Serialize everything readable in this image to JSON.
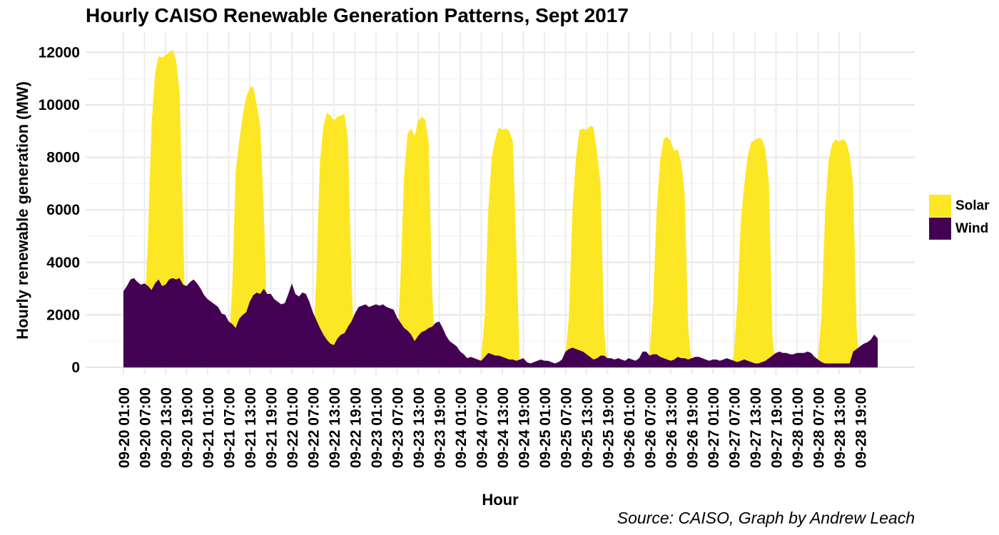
{
  "chart_data": {
    "type": "area",
    "stacked": false,
    "title": "Hourly CAISO Renewable Generation Patterns, Sept 2017",
    "xlabel": "Hour",
    "ylabel": "Hourly renewable generation (MW)",
    "caption": "Source: CAISO, Graph by Andrew Leach",
    "x_start": "2017-09-20 01:00",
    "x_end": "2017-09-28 24:00",
    "ylim": [
      0,
      12500
    ],
    "yticks": [
      0,
      2000,
      4000,
      6000,
      8000,
      10000,
      12000
    ],
    "xtick_labels": [
      "09-20 01:00",
      "09-20 07:00",
      "09-20 13:00",
      "09-20 19:00",
      "09-21 01:00",
      "09-21 07:00",
      "09-21 13:00",
      "09-21 19:00",
      "09-22 01:00",
      "09-22 07:00",
      "09-22 13:00",
      "09-22 19:00",
      "09-23 01:00",
      "09-23 07:00",
      "09-23 13:00",
      "09-23 19:00",
      "09-24 01:00",
      "09-24 07:00",
      "09-24 13:00",
      "09-24 19:00",
      "09-25 01:00",
      "09-25 07:00",
      "09-25 13:00",
      "09-25 19:00",
      "09-26 01:00",
      "09-26 07:00",
      "09-26 13:00",
      "09-26 19:00",
      "09-27 01:00",
      "09-27 07:00",
      "09-27 13:00",
      "09-27 19:00",
      "09-28 01:00",
      "09-28 07:00",
      "09-28 13:00",
      "09-28 19:00"
    ],
    "legend_position": "right",
    "grid": true,
    "series": [
      {
        "name": "Solar",
        "color": "#FDE725",
        "values": [
          0,
          0,
          0,
          0,
          0,
          0,
          2000,
          5000,
          9200,
          11200,
          11850,
          11800,
          11900,
          12000,
          12100,
          11700,
          10500,
          5500,
          0,
          0,
          0,
          0,
          0,
          0,
          0,
          0,
          0,
          0,
          0,
          0,
          800,
          3000,
          7500,
          8600,
          9600,
          10300,
          10650,
          10700,
          10000,
          9200,
          6000,
          1500,
          0,
          0,
          0,
          0,
          0,
          0,
          0,
          0,
          0,
          0,
          0,
          0,
          700,
          3500,
          7800,
          9200,
          9700,
          9600,
          9400,
          9550,
          9600,
          9650,
          8700,
          3500,
          0,
          0,
          0,
          0,
          0,
          0,
          0,
          0,
          0,
          0,
          0,
          0,
          600,
          3500,
          7300,
          8900,
          9100,
          8800,
          9400,
          9550,
          9450,
          8600,
          3000,
          0,
          0,
          0,
          0,
          0,
          0,
          0,
          0,
          0,
          0,
          0,
          0,
          0,
          400,
          2000,
          6000,
          8000,
          8700,
          9150,
          9050,
          9100,
          9000,
          8600,
          4500,
          0,
          0,
          0,
          0,
          0,
          0,
          0,
          0,
          0,
          0,
          0,
          0,
          0,
          400,
          2000,
          6000,
          8000,
          9050,
          9100,
          9050,
          9200,
          9150,
          8200,
          7000,
          1500,
          0,
          0,
          0,
          0,
          0,
          0,
          0,
          0,
          0,
          0,
          0,
          0,
          500,
          2500,
          6000,
          7900,
          8700,
          8800,
          8600,
          8250,
          8300,
          7800,
          6600,
          1500,
          0,
          0,
          0,
          0,
          0,
          0,
          0,
          0,
          0,
          0,
          0,
          0,
          500,
          2500,
          5600,
          7000,
          8100,
          8600,
          8650,
          8750,
          8700,
          8300,
          7000,
          1200,
          0,
          0,
          0,
          0,
          0,
          0,
          0,
          0,
          0,
          0,
          0,
          0,
          400,
          2000,
          5900,
          7900,
          8500,
          8700,
          8600,
          8700,
          8600,
          8100,
          7000,
          1500,
          0,
          0,
          0,
          0,
          0,
          0
        ]
      },
      {
        "name": "Wind",
        "color": "#440154",
        "values": [
          2900,
          3100,
          3350,
          3400,
          3250,
          3150,
          3200,
          3100,
          2950,
          3200,
          3350,
          3100,
          3150,
          3350,
          3400,
          3350,
          3400,
          3150,
          3100,
          3250,
          3350,
          3200,
          3000,
          2750,
          2600,
          2500,
          2400,
          2300,
          2050,
          2000,
          1750,
          1650,
          1500,
          1850,
          2000,
          2100,
          2500,
          2750,
          2850,
          2800,
          3000,
          2800,
          2800,
          2600,
          2500,
          2400,
          2450,
          2800,
          3200,
          2800,
          2700,
          2850,
          2800,
          2500,
          2100,
          1800,
          1500,
          1250,
          1050,
          900,
          850,
          1100,
          1250,
          1300,
          1550,
          1750,
          2050,
          2300,
          2350,
          2400,
          2300,
          2350,
          2400,
          2350,
          2400,
          2300,
          2250,
          2200,
          1900,
          1700,
          1500,
          1400,
          1250,
          1000,
          1200,
          1350,
          1400,
          1500,
          1550,
          1700,
          1750,
          1500,
          1200,
          1000,
          900,
          800,
          600,
          500,
          350,
          400,
          350,
          300,
          250,
          400,
          550,
          500,
          450,
          450,
          400,
          350,
          300,
          300,
          250,
          300,
          350,
          200,
          150,
          200,
          250,
          300,
          250,
          250,
          200,
          150,
          200,
          300,
          600,
          700,
          750,
          700,
          650,
          600,
          500,
          400,
          300,
          350,
          450,
          450,
          350,
          350,
          300,
          350,
          300,
          250,
          350,
          300,
          250,
          350,
          600,
          600,
          450,
          500,
          500,
          400,
          350,
          300,
          250,
          300,
          400,
          350,
          350,
          300,
          350,
          400,
          400,
          350,
          300,
          250,
          300,
          300,
          250,
          300,
          350,
          300,
          250,
          200,
          250,
          300,
          250,
          200,
          150,
          150,
          200,
          250,
          350,
          450,
          550,
          600,
          550,
          550,
          500,
          500,
          550,
          550,
          550,
          600,
          550,
          400,
          300,
          200,
          150,
          150,
          150,
          150,
          150,
          150,
          150,
          150,
          600,
          700,
          800,
          900,
          950,
          1050,
          1250,
          1100
        ]
      }
    ]
  }
}
